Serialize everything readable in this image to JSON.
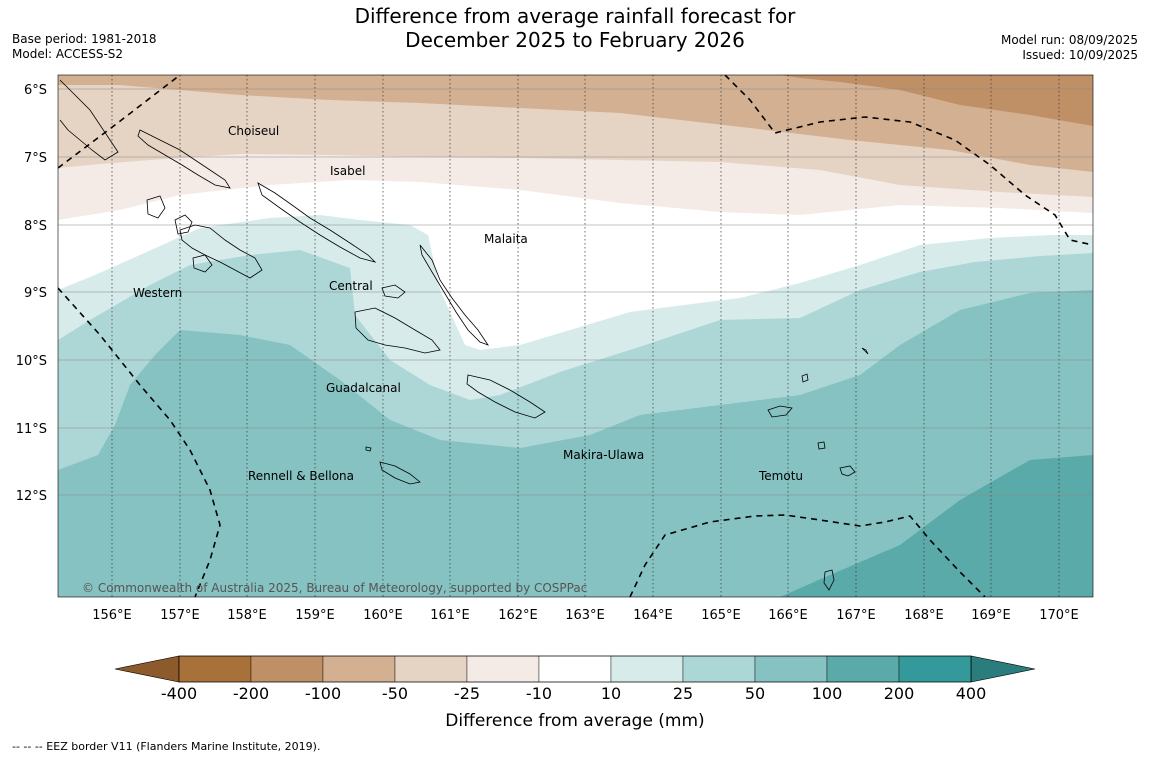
{
  "header": {
    "title_line1": "Difference from average rainfall forecast for",
    "title_line2": "December 2025 to February 2026",
    "base_period": "Base period: 1981-2018",
    "model": "Model: ACCESS-S2",
    "model_run": "Model run: 08/09/2025",
    "issued": "Issued: 10/09/2025"
  },
  "map": {
    "lat_labels": [
      "6°S",
      "7°S",
      "8°S",
      "9°S",
      "10°S",
      "11°S",
      "12°S"
    ],
    "lon_labels": [
      "156°E",
      "157°E",
      "158°E",
      "159°E",
      "160°E",
      "161°E",
      "162°E",
      "163°E",
      "164°E",
      "165°E",
      "166°E",
      "167°E",
      "168°E",
      "169°E",
      "170°E"
    ],
    "regions": [
      "Choiseul",
      "Isabel",
      "Malaita",
      "Western",
      "Central",
      "Guadalcanal",
      "Makira-Ulawa",
      "Rennell & Bellona",
      "Temotu"
    ],
    "copyright": "© Commonwealth of Australia 2025, Bureau of Meteorology, supported by COSPPac"
  },
  "colorbar": {
    "ticks": [
      "-400",
      "-200",
      "-100",
      "-50",
      "-25",
      "-10",
      "10",
      "25",
      "50",
      "100",
      "200",
      "400"
    ],
    "colors": [
      "#a9713a",
      "#bf9066",
      "#d4b092",
      "#e5d3c3",
      "#f4ebe6",
      "#ffffff",
      "#d6ebea",
      "#add7d7",
      "#85c2c1",
      "#5aaaa9",
      "#34999a"
    ],
    "low_arrow_color": "#8d5a2b",
    "high_arrow_color": "#2b7c7c",
    "title": "Difference from average (mm)"
  },
  "footnote": "--  --  -- EEZ border V11 (Flanders Marine Institute, 2019)."
}
